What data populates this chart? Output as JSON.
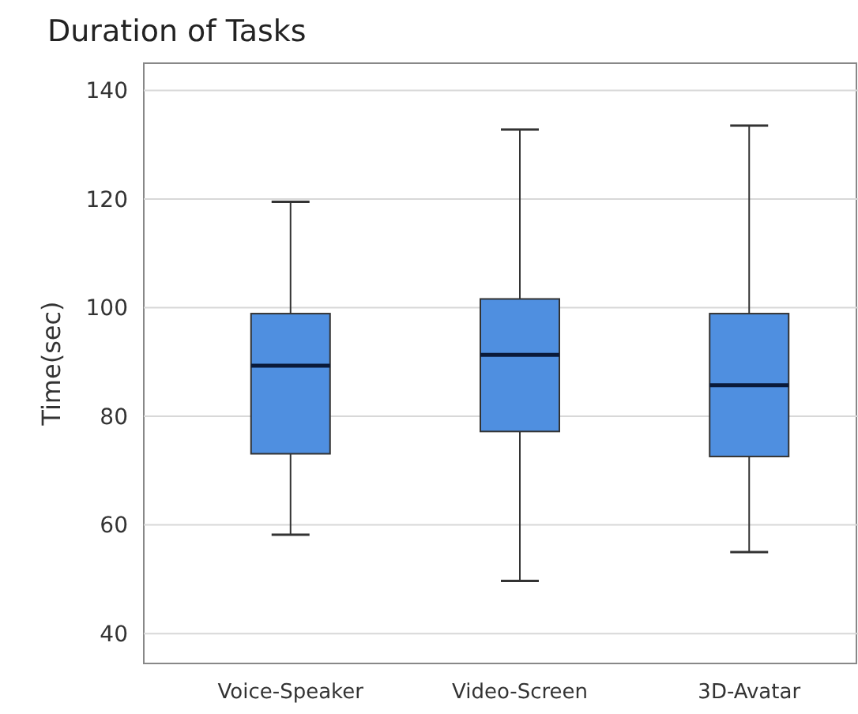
{
  "chart_data": {
    "type": "box",
    "title": "Duration of Tasks",
    "ylabel": "Time(sec)",
    "categories": [
      "Voice-Speaker",
      "Video-Screen",
      "3D-Avatar"
    ],
    "color": "#4f8fe0",
    "boxes": [
      {
        "low": 58.2,
        "q1": 73.1,
        "median": 89.3,
        "q3": 98.9,
        "high": 119.5
      },
      {
        "low": 49.7,
        "q1": 77.2,
        "median": 91.3,
        "q3": 101.6,
        "high": 132.8
      },
      {
        "low": 55,
        "q1": 72.6,
        "median": 85.7,
        "q3": 98.9,
        "high": 133.5
      }
    ],
    "ylim": [
      34.5,
      145
    ],
    "yticks": [
      40,
      60,
      80,
      100,
      120,
      140
    ],
    "grid": "y"
  }
}
